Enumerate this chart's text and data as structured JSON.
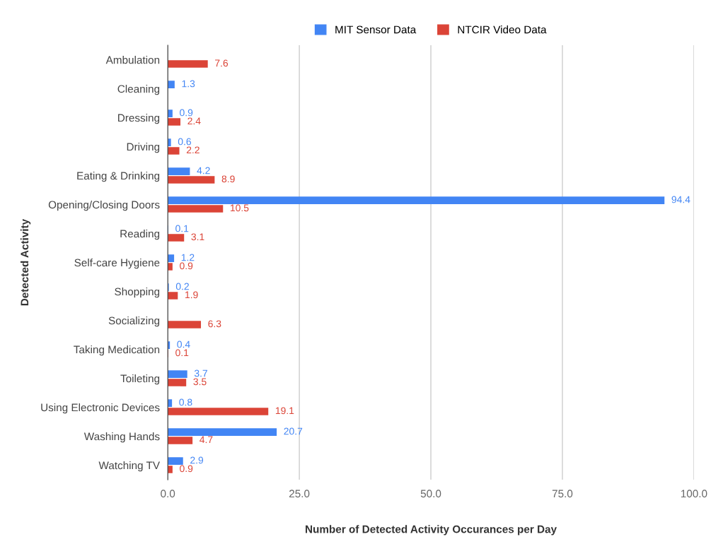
{
  "chart_data": {
    "type": "bar",
    "orientation": "horizontal",
    "xlabel": "Number of Detected Activity Occurances per Day",
    "ylabel": "Detected Activity",
    "categories": [
      "Ambulation",
      "Cleaning",
      "Dressing",
      "Driving",
      "Eating & Drinking",
      "Opening/Closing Doors",
      "Reading",
      "Self-care Hygiene",
      "Shopping",
      "Socializing",
      "Taking Medication",
      "Toileting",
      "Using Electronic Devices",
      "Washing Hands",
      "Watching TV"
    ],
    "series": [
      {
        "name": "MIT Sensor Data",
        "color": "#4285f4",
        "values": [
          null,
          1.3,
          0.9,
          0.6,
          4.2,
          94.4,
          0.1,
          1.2,
          0.2,
          null,
          0.4,
          3.7,
          0.8,
          20.7,
          2.9
        ]
      },
      {
        "name": "NTCIR Video Data",
        "color": "#db4437",
        "values": [
          7.6,
          null,
          2.4,
          2.2,
          8.9,
          10.5,
          3.1,
          0.9,
          1.9,
          6.3,
          0.1,
          3.5,
          19.1,
          4.7,
          0.9
        ]
      }
    ],
    "xlim": [
      0,
      100
    ],
    "xticks": [
      {
        "value": 0,
        "label": "0.0"
      },
      {
        "value": 25,
        "label": "25.0"
      },
      {
        "value": 50,
        "label": "50.0"
      },
      {
        "value": 75,
        "label": "75.0"
      },
      {
        "value": 100,
        "label": "100.0"
      }
    ],
    "grid": "x",
    "legend": "top",
    "data_labels": true
  }
}
